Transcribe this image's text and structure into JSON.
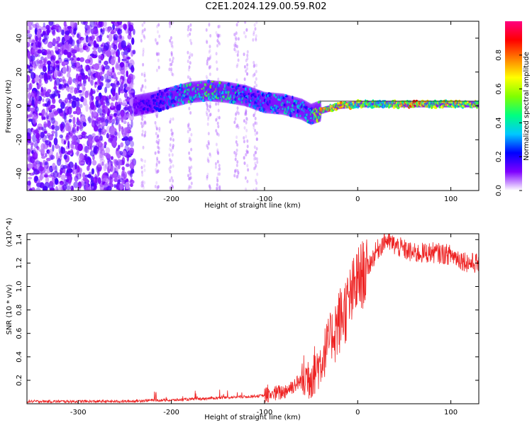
{
  "title": "C2E1.2024.129.00.59.R02",
  "chart_data": [
    {
      "type": "heatmap",
      "xlabel": "Height of straight line (km)",
      "ylabel": "Frequency (Hz)",
      "xlim": [
        -355,
        130
      ],
      "ylim": [
        -50,
        50
      ],
      "xticks": [
        -300,
        -200,
        -100,
        0,
        100
      ],
      "yticks": [
        -40,
        -20,
        0,
        20,
        40
      ],
      "colorbar": {
        "label": "Normalized spectral amplitude",
        "range": [
          0,
          1
        ],
        "ticks": [
          0.0,
          0.2,
          0.4,
          0.6,
          0.8
        ],
        "colors": [
          "#ffffff",
          "#7f00ff",
          "#0000ff",
          "#00c8ff",
          "#00ff80",
          "#80ff00",
          "#ffff00",
          "#ff8000",
          "#ff0000",
          "#ff0080"
        ]
      },
      "ridge": {
        "description": "main Doppler trace",
        "x": [
          -240,
          -220,
          -200,
          -180,
          -160,
          -140,
          -120,
          -100,
          -80,
          -60,
          -50,
          -40,
          -20,
          0,
          20,
          40,
          60,
          80,
          100,
          130
        ],
        "y": [
          0,
          2,
          5,
          8,
          9,
          8,
          6,
          2,
          1,
          -2,
          -5,
          -3,
          0,
          1,
          1,
          1,
          1,
          1,
          1,
          1
        ],
        "amplitude": [
          0.15,
          0.2,
          0.3,
          0.45,
          0.5,
          0.45,
          0.35,
          0.3,
          0.4,
          0.35,
          0.4,
          0.7,
          0.75,
          0.6,
          0.5,
          0.6,
          0.85,
          0.6,
          0.7,
          0.6
        ]
      },
      "noise_region_x": [
        -355,
        -240
      ]
    },
    {
      "type": "line",
      "xlabel": "Height of straight line (km)",
      "ylabel": "SNR (10 * v/v)",
      "y_multiplier": "(x10^4)",
      "xlim": [
        -355,
        130
      ],
      "ylim": [
        0,
        14500
      ],
      "xticks": [
        -300,
        -200,
        -100,
        0,
        100
      ],
      "yticks": [
        2000,
        4000,
        6000,
        8000,
        10000,
        12000,
        14000
      ],
      "ytick_labels": [
        "0.2",
        "0.4",
        "0.6",
        "0.8",
        "1.0",
        "1.2",
        "1.4"
      ],
      "color": "#ee2222",
      "x": [
        -355,
        -300,
        -250,
        -220,
        -200,
        -150,
        -120,
        -100,
        -80,
        -70,
        -60,
        -50,
        -40,
        -35,
        -30,
        -20,
        -10,
        0,
        10,
        20,
        30,
        40,
        60,
        80,
        100,
        120,
        130
      ],
      "y": [
        200,
        200,
        200,
        300,
        300,
        500,
        600,
        700,
        1000,
        1500,
        2000,
        2500,
        3500,
        4500,
        5500,
        7000,
        8500,
        10500,
        11500,
        13000,
        14000,
        13500,
        12800,
        12900,
        12700,
        12000,
        12000
      ]
    }
  ]
}
